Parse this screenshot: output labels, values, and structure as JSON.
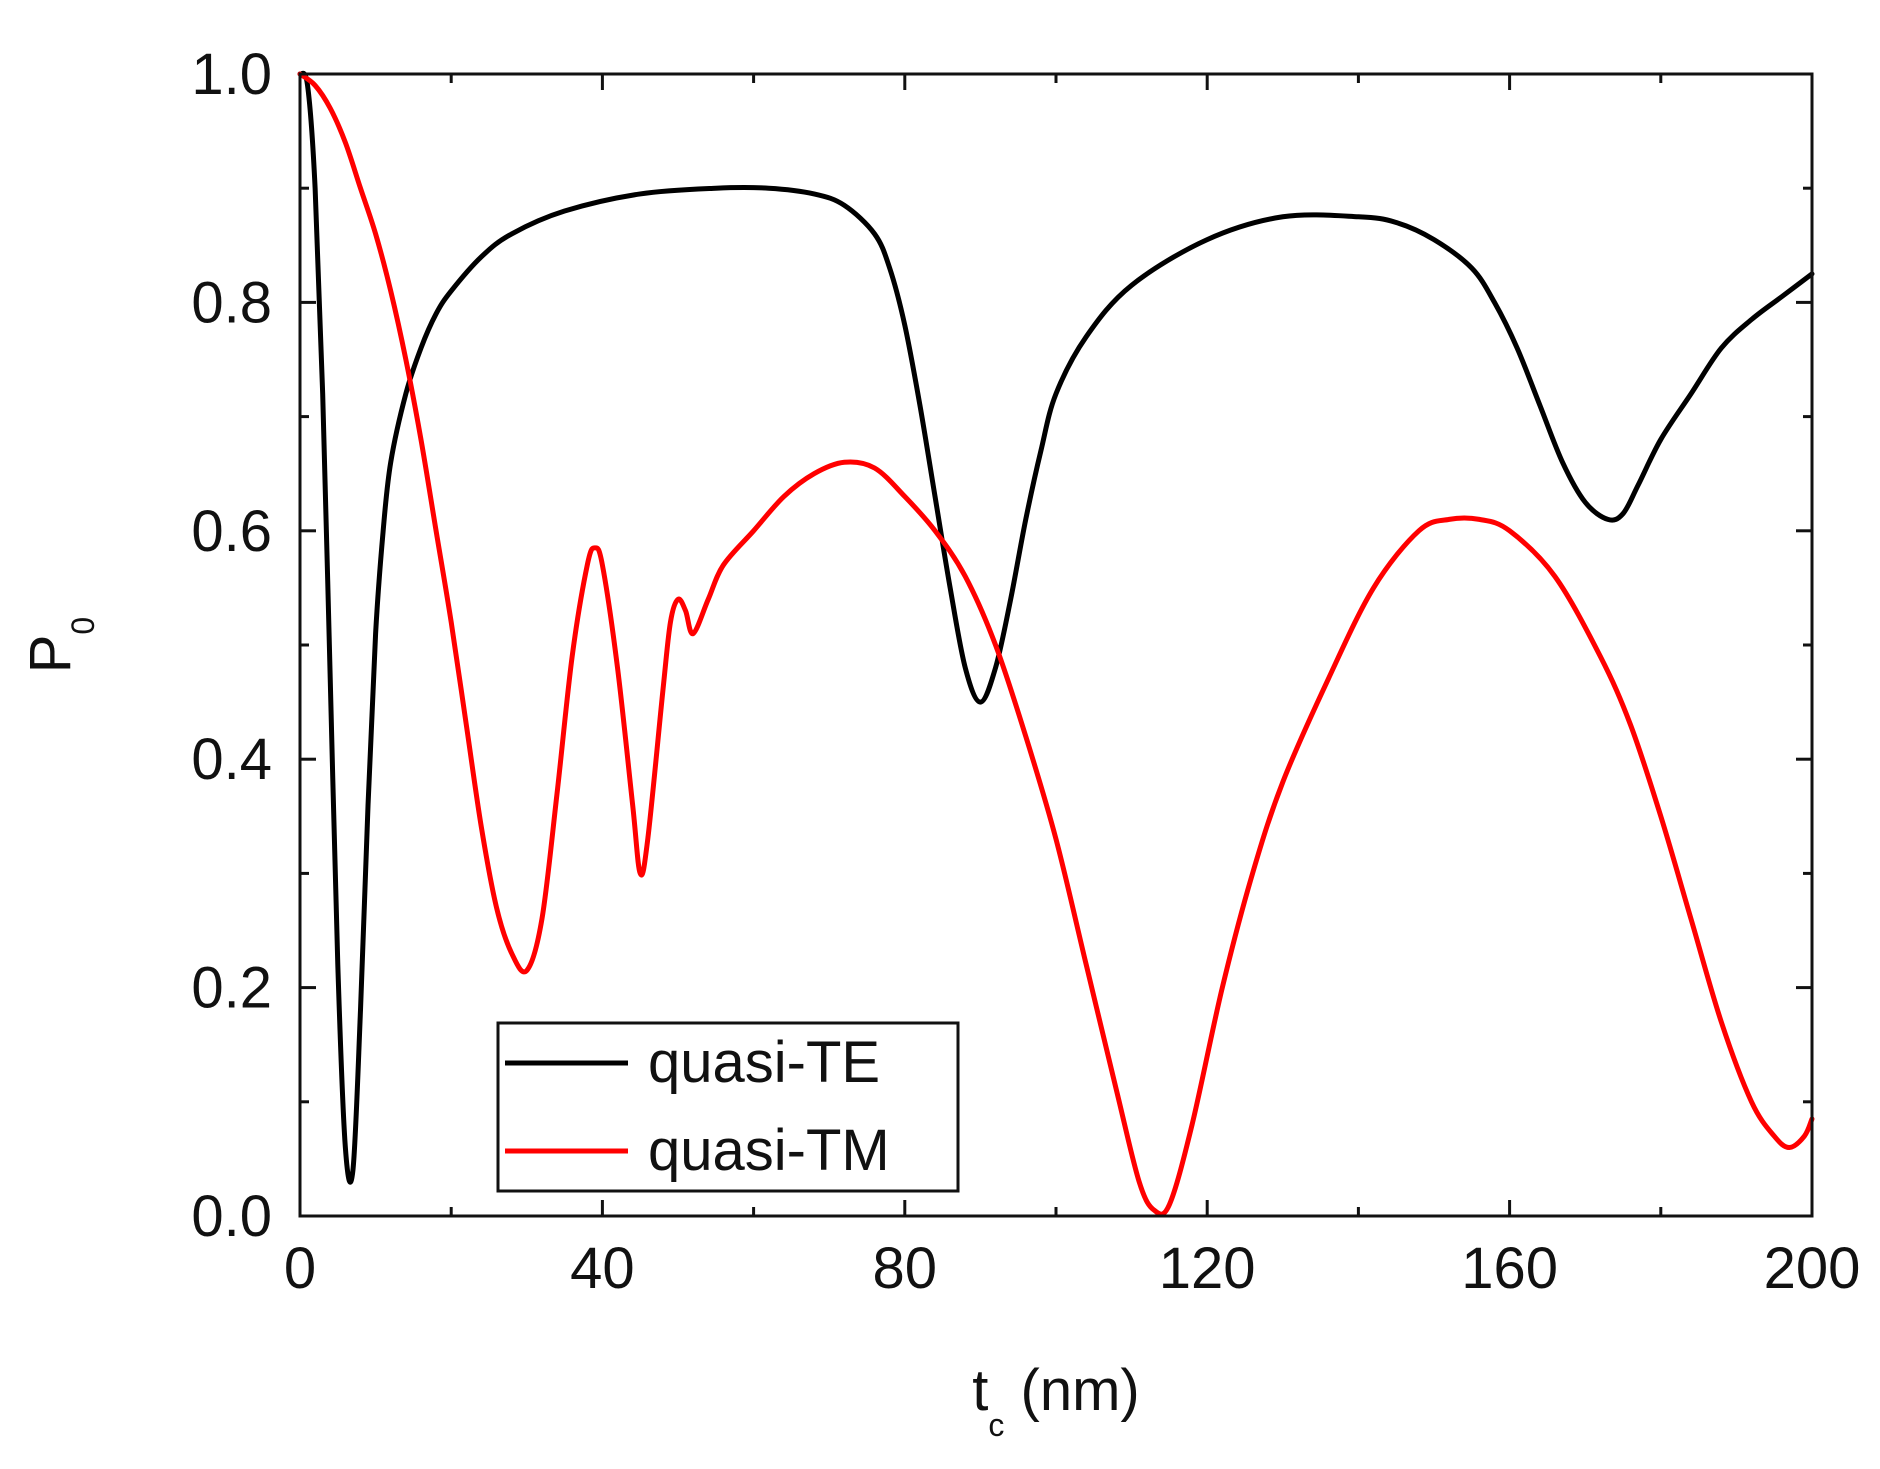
{
  "chart_data": {
    "type": "line",
    "title": "",
    "xlabel": "t_c (nm)",
    "xlabel_parts": {
      "main": "t",
      "sub": "c",
      "rest": " (nm)"
    },
    "ylabel": "P_0",
    "ylabel_parts": {
      "main": "P",
      "sub": "0"
    },
    "xlim": [
      0,
      200
    ],
    "ylim": [
      0,
      1.0
    ],
    "xticks": [
      {
        "value": 0,
        "label": "0"
      },
      {
        "value": 40,
        "label": "40"
      },
      {
        "value": 80,
        "label": "80"
      },
      {
        "value": 120,
        "label": "120"
      },
      {
        "value": 160,
        "label": "160"
      },
      {
        "value": 200,
        "label": "200"
      }
    ],
    "yticks": [
      {
        "value": 0.0,
        "label": "0.0"
      },
      {
        "value": 0.2,
        "label": "0.2"
      },
      {
        "value": 0.4,
        "label": "0.4"
      },
      {
        "value": 0.6,
        "label": "0.6"
      },
      {
        "value": 0.8,
        "label": "0.8"
      },
      {
        "value": 1.0,
        "label": "1.0"
      }
    ],
    "minor_xticks": [
      20,
      60,
      100,
      140,
      180
    ],
    "minor_yticks": [
      0.1,
      0.3,
      0.5,
      0.7,
      0.9
    ],
    "grid": false,
    "legend_position": "bottom-left",
    "series": [
      {
        "name": "quasi-TE",
        "color": "#000000",
        "x": [
          0,
          1,
          2,
          3,
          4,
          5,
          6,
          7,
          8,
          9,
          10,
          11,
          12,
          14,
          16,
          18,
          20,
          24,
          28,
          35,
          45,
          55,
          62,
          68,
          72,
          76,
          78,
          80,
          82,
          84,
          86,
          88,
          90,
          92,
          94,
          96,
          98,
          100,
          104,
          110,
          120,
          130,
          140,
          145,
          150,
          155,
          158,
          161,
          164,
          167,
          170,
          173,
          175,
          177,
          180,
          184,
          188,
          192,
          196,
          200
        ],
        "y": [
          1.0,
          0.99,
          0.9,
          0.72,
          0.47,
          0.22,
          0.06,
          0.04,
          0.18,
          0.36,
          0.51,
          0.6,
          0.66,
          0.72,
          0.76,
          0.79,
          0.81,
          0.84,
          0.86,
          0.88,
          0.895,
          0.9,
          0.9,
          0.895,
          0.885,
          0.86,
          0.83,
          0.78,
          0.71,
          0.63,
          0.55,
          0.48,
          0.45,
          0.48,
          0.54,
          0.61,
          0.67,
          0.72,
          0.77,
          0.815,
          0.855,
          0.875,
          0.875,
          0.87,
          0.855,
          0.83,
          0.8,
          0.76,
          0.71,
          0.66,
          0.625,
          0.61,
          0.615,
          0.64,
          0.68,
          0.72,
          0.76,
          0.785,
          0.805,
          0.825
        ]
      },
      {
        "name": "quasi-TM",
        "color": "#ff0000",
        "x": [
          0,
          2,
          4,
          6,
          8,
          10,
          12,
          14,
          16,
          18,
          20,
          22,
          24,
          26,
          28,
          30,
          32,
          34,
          36,
          38,
          39,
          40,
          42,
          44,
          45,
          46,
          48,
          49,
          50,
          51,
          52,
          54,
          56,
          60,
          64,
          68,
          72,
          76,
          80,
          84,
          88,
          92,
          96,
          100,
          104,
          108,
          111,
          113,
          115,
          118,
          122,
          126,
          130,
          136,
          142,
          148,
          152,
          156,
          160,
          166,
          172,
          176,
          180,
          184,
          188,
          192,
          195,
          197,
          199,
          200
        ],
        "y": [
          1.0,
          0.99,
          0.97,
          0.94,
          0.9,
          0.86,
          0.81,
          0.75,
          0.68,
          0.6,
          0.52,
          0.43,
          0.34,
          0.27,
          0.23,
          0.215,
          0.26,
          0.37,
          0.49,
          0.57,
          0.585,
          0.57,
          0.48,
          0.36,
          0.3,
          0.33,
          0.46,
          0.52,
          0.54,
          0.53,
          0.51,
          0.54,
          0.57,
          0.6,
          0.63,
          0.65,
          0.66,
          0.655,
          0.63,
          0.6,
          0.56,
          0.5,
          0.42,
          0.33,
          0.22,
          0.11,
          0.03,
          0.005,
          0.01,
          0.08,
          0.2,
          0.3,
          0.38,
          0.47,
          0.55,
          0.6,
          0.61,
          0.61,
          0.6,
          0.56,
          0.49,
          0.43,
          0.35,
          0.26,
          0.17,
          0.1,
          0.07,
          0.06,
          0.07,
          0.085
        ]
      }
    ]
  }
}
